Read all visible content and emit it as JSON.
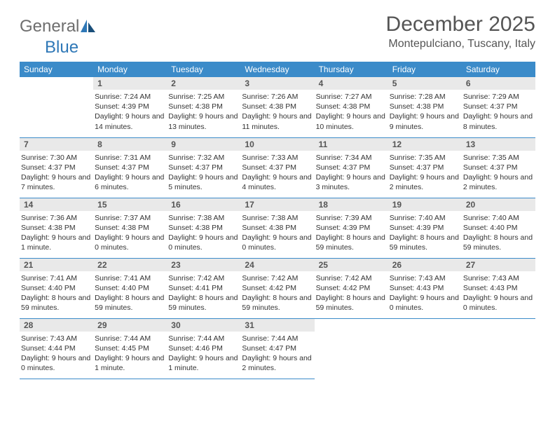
{
  "brand": {
    "part1": "General",
    "part2": "Blue"
  },
  "title": "December 2025",
  "location": "Montepulciano, Tuscany, Italy",
  "colors": {
    "header_bg": "#3b8bc9",
    "header_text": "#ffffff",
    "daynum_bg": "#e9e9e9",
    "row_border": "#3b8bc9",
    "logo_gray": "#6e6e6e",
    "logo_blue": "#2f78b7"
  },
  "days_of_week": [
    "Sunday",
    "Monday",
    "Tuesday",
    "Wednesday",
    "Thursday",
    "Friday",
    "Saturday"
  ],
  "layout": {
    "columns": 7,
    "rows": 5,
    "first_weekday_offset": 1
  },
  "cells": [
    {
      "n": "",
      "sr": "",
      "ss": "",
      "dl": ""
    },
    {
      "n": "1",
      "sr": "Sunrise: 7:24 AM",
      "ss": "Sunset: 4:39 PM",
      "dl": "Daylight: 9 hours and 14 minutes."
    },
    {
      "n": "2",
      "sr": "Sunrise: 7:25 AM",
      "ss": "Sunset: 4:38 PM",
      "dl": "Daylight: 9 hours and 13 minutes."
    },
    {
      "n": "3",
      "sr": "Sunrise: 7:26 AM",
      "ss": "Sunset: 4:38 PM",
      "dl": "Daylight: 9 hours and 11 minutes."
    },
    {
      "n": "4",
      "sr": "Sunrise: 7:27 AM",
      "ss": "Sunset: 4:38 PM",
      "dl": "Daylight: 9 hours and 10 minutes."
    },
    {
      "n": "5",
      "sr": "Sunrise: 7:28 AM",
      "ss": "Sunset: 4:38 PM",
      "dl": "Daylight: 9 hours and 9 minutes."
    },
    {
      "n": "6",
      "sr": "Sunrise: 7:29 AM",
      "ss": "Sunset: 4:37 PM",
      "dl": "Daylight: 9 hours and 8 minutes."
    },
    {
      "n": "7",
      "sr": "Sunrise: 7:30 AM",
      "ss": "Sunset: 4:37 PM",
      "dl": "Daylight: 9 hours and 7 minutes."
    },
    {
      "n": "8",
      "sr": "Sunrise: 7:31 AM",
      "ss": "Sunset: 4:37 PM",
      "dl": "Daylight: 9 hours and 6 minutes."
    },
    {
      "n": "9",
      "sr": "Sunrise: 7:32 AM",
      "ss": "Sunset: 4:37 PM",
      "dl": "Daylight: 9 hours and 5 minutes."
    },
    {
      "n": "10",
      "sr": "Sunrise: 7:33 AM",
      "ss": "Sunset: 4:37 PM",
      "dl": "Daylight: 9 hours and 4 minutes."
    },
    {
      "n": "11",
      "sr": "Sunrise: 7:34 AM",
      "ss": "Sunset: 4:37 PM",
      "dl": "Daylight: 9 hours and 3 minutes."
    },
    {
      "n": "12",
      "sr": "Sunrise: 7:35 AM",
      "ss": "Sunset: 4:37 PM",
      "dl": "Daylight: 9 hours and 2 minutes."
    },
    {
      "n": "13",
      "sr": "Sunrise: 7:35 AM",
      "ss": "Sunset: 4:37 PM",
      "dl": "Daylight: 9 hours and 2 minutes."
    },
    {
      "n": "14",
      "sr": "Sunrise: 7:36 AM",
      "ss": "Sunset: 4:38 PM",
      "dl": "Daylight: 9 hours and 1 minute."
    },
    {
      "n": "15",
      "sr": "Sunrise: 7:37 AM",
      "ss": "Sunset: 4:38 PM",
      "dl": "Daylight: 9 hours and 0 minutes."
    },
    {
      "n": "16",
      "sr": "Sunrise: 7:38 AM",
      "ss": "Sunset: 4:38 PM",
      "dl": "Daylight: 9 hours and 0 minutes."
    },
    {
      "n": "17",
      "sr": "Sunrise: 7:38 AM",
      "ss": "Sunset: 4:38 PM",
      "dl": "Daylight: 9 hours and 0 minutes."
    },
    {
      "n": "18",
      "sr": "Sunrise: 7:39 AM",
      "ss": "Sunset: 4:39 PM",
      "dl": "Daylight: 8 hours and 59 minutes."
    },
    {
      "n": "19",
      "sr": "Sunrise: 7:40 AM",
      "ss": "Sunset: 4:39 PM",
      "dl": "Daylight: 8 hours and 59 minutes."
    },
    {
      "n": "20",
      "sr": "Sunrise: 7:40 AM",
      "ss": "Sunset: 4:40 PM",
      "dl": "Daylight: 8 hours and 59 minutes."
    },
    {
      "n": "21",
      "sr": "Sunrise: 7:41 AM",
      "ss": "Sunset: 4:40 PM",
      "dl": "Daylight: 8 hours and 59 minutes."
    },
    {
      "n": "22",
      "sr": "Sunrise: 7:41 AM",
      "ss": "Sunset: 4:40 PM",
      "dl": "Daylight: 8 hours and 59 minutes."
    },
    {
      "n": "23",
      "sr": "Sunrise: 7:42 AM",
      "ss": "Sunset: 4:41 PM",
      "dl": "Daylight: 8 hours and 59 minutes."
    },
    {
      "n": "24",
      "sr": "Sunrise: 7:42 AM",
      "ss": "Sunset: 4:42 PM",
      "dl": "Daylight: 8 hours and 59 minutes."
    },
    {
      "n": "25",
      "sr": "Sunrise: 7:42 AM",
      "ss": "Sunset: 4:42 PM",
      "dl": "Daylight: 8 hours and 59 minutes."
    },
    {
      "n": "26",
      "sr": "Sunrise: 7:43 AM",
      "ss": "Sunset: 4:43 PM",
      "dl": "Daylight: 9 hours and 0 minutes."
    },
    {
      "n": "27",
      "sr": "Sunrise: 7:43 AM",
      "ss": "Sunset: 4:43 PM",
      "dl": "Daylight: 9 hours and 0 minutes."
    },
    {
      "n": "28",
      "sr": "Sunrise: 7:43 AM",
      "ss": "Sunset: 4:44 PM",
      "dl": "Daylight: 9 hours and 0 minutes."
    },
    {
      "n": "29",
      "sr": "Sunrise: 7:44 AM",
      "ss": "Sunset: 4:45 PM",
      "dl": "Daylight: 9 hours and 1 minute."
    },
    {
      "n": "30",
      "sr": "Sunrise: 7:44 AM",
      "ss": "Sunset: 4:46 PM",
      "dl": "Daylight: 9 hours and 1 minute."
    },
    {
      "n": "31",
      "sr": "Sunrise: 7:44 AM",
      "ss": "Sunset: 4:47 PM",
      "dl": "Daylight: 9 hours and 2 minutes."
    },
    {
      "n": "",
      "sr": "",
      "ss": "",
      "dl": ""
    },
    {
      "n": "",
      "sr": "",
      "ss": "",
      "dl": ""
    },
    {
      "n": "",
      "sr": "",
      "ss": "",
      "dl": ""
    }
  ]
}
